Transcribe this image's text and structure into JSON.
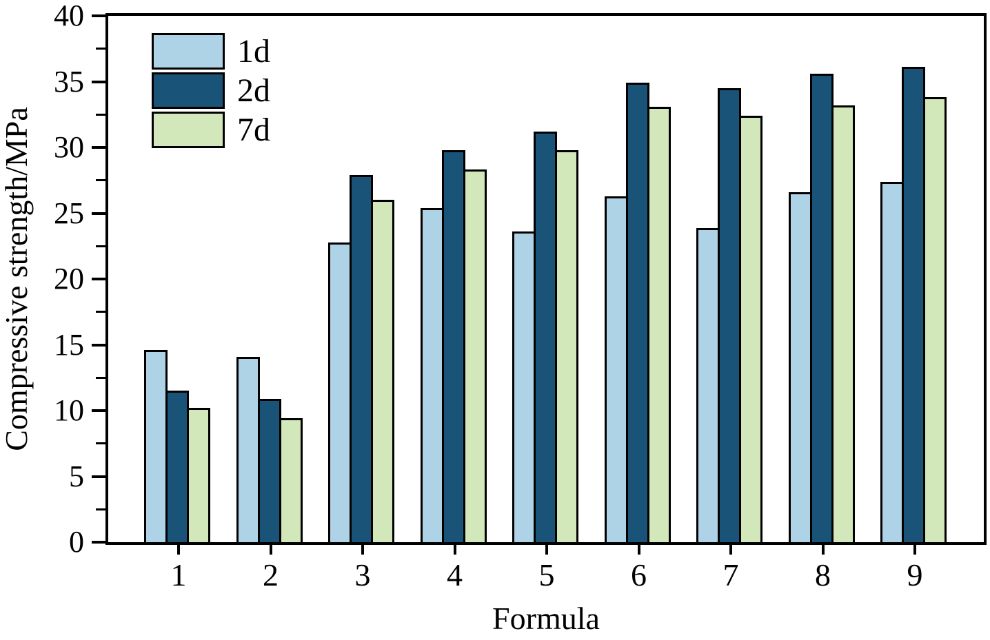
{
  "chart_data": {
    "type": "bar",
    "title": "",
    "xlabel": "Formula",
    "ylabel": "Compressive strength/MPa",
    "categories": [
      "1",
      "2",
      "3",
      "4",
      "5",
      "6",
      "7",
      "8",
      "9"
    ],
    "series": [
      {
        "name": "1d",
        "color": "#aed2e6",
        "values": [
          14.6,
          14.1,
          22.8,
          25.4,
          23.6,
          26.3,
          23.9,
          26.6,
          27.4
        ]
      },
      {
        "name": "2d",
        "color": "#1a5378",
        "values": [
          11.5,
          10.9,
          27.9,
          29.8,
          31.2,
          34.9,
          34.5,
          35.6,
          36.1
        ]
      },
      {
        "name": "7d",
        "color": "#d2e8bb",
        "values": [
          10.2,
          9.4,
          26.0,
          28.3,
          29.8,
          33.1,
          32.4,
          33.2,
          33.8
        ]
      }
    ],
    "ylim": [
      0,
      40
    ],
    "ytick_step": 5,
    "yminor_step": 2.5,
    "yticks": [
      "0",
      "5",
      "10",
      "15",
      "20",
      "25",
      "30",
      "35",
      "40"
    ],
    "legend_position": "top-left",
    "grid": false,
    "bar_edge_color": "#000000",
    "frame_color": "#000000",
    "background_color": "#ffffff"
  }
}
